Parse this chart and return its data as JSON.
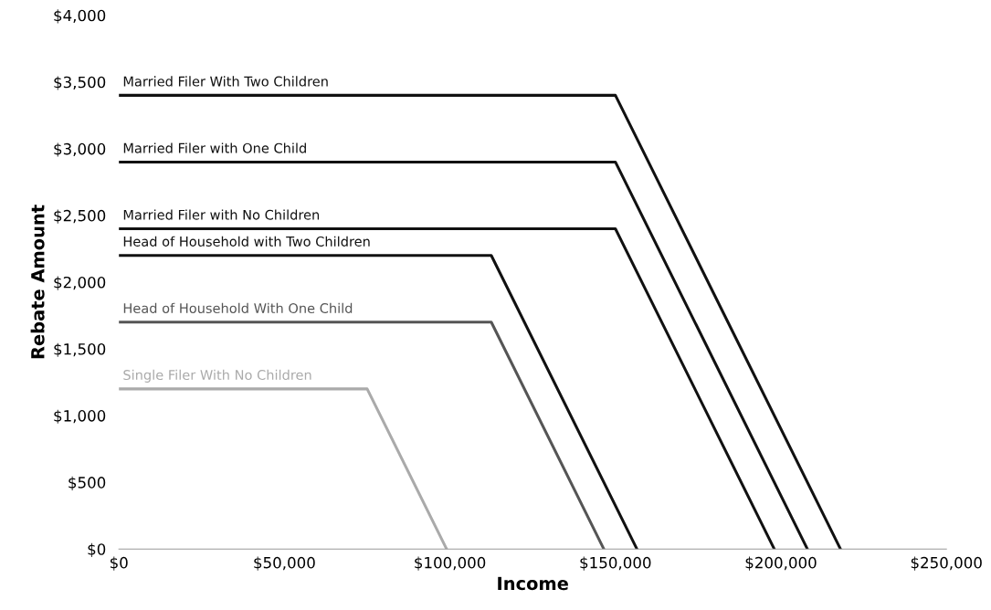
{
  "chart_data": {
    "type": "line",
    "xlabel": "Income",
    "ylabel": "Rebate Amount",
    "xlim": [
      0,
      250000
    ],
    "xticks": [
      {
        "value": 0,
        "label": "$0"
      },
      {
        "value": 50000,
        "label": "$50,000"
      },
      {
        "value": 100000,
        "label": "$100,000"
      },
      {
        "value": 150000,
        "label": "$150,000"
      },
      {
        "value": 200000,
        "label": "$200,000"
      },
      {
        "value": 250000,
        "label": "$250,000"
      }
    ],
    "ylim": [
      0,
      4000
    ],
    "yticks": [
      {
        "value": 0,
        "label": "$0"
      },
      {
        "value": 500,
        "label": "$500"
      },
      {
        "value": 1000,
        "label": "$1,000"
      },
      {
        "value": 1500,
        "label": "$1,500"
      },
      {
        "value": 2000,
        "label": "$2,000"
      },
      {
        "value": 2500,
        "label": "$2,500"
      },
      {
        "value": 3000,
        "label": "$3,000"
      },
      {
        "value": 3500,
        "label": "$3,500"
      },
      {
        "value": 4000,
        "label": "$4,000"
      }
    ],
    "grid": false,
    "legend": false,
    "marker": "none",
    "line_style": "solid",
    "series": [
      {
        "name": "Married Filer With Two Children",
        "color": "#111111",
        "x": [
          0,
          150000,
          218000
        ],
        "values": [
          3400,
          3400,
          0
        ]
      },
      {
        "name": "Married Filer with One Child",
        "color": "#111111",
        "x": [
          0,
          150000,
          208000
        ],
        "values": [
          2900,
          2900,
          0
        ]
      },
      {
        "name": "Married Filer with No Children",
        "color": "#111111",
        "x": [
          0,
          150000,
          198000
        ],
        "values": [
          2400,
          2400,
          0
        ]
      },
      {
        "name": "Head of Household with Two Children",
        "color": "#111111",
        "x": [
          0,
          112500,
          156500
        ],
        "values": [
          2200,
          2200,
          0
        ]
      },
      {
        "name": "Head of Household With One Child",
        "color": "#555555",
        "x": [
          0,
          112500,
          146500
        ],
        "values": [
          1700,
          1700,
          0
        ]
      },
      {
        "name": "Single Filer With No Children",
        "color": "#aaaaaa",
        "x": [
          0,
          75000,
          99000
        ],
        "values": [
          1200,
          1200,
          0
        ]
      }
    ]
  }
}
